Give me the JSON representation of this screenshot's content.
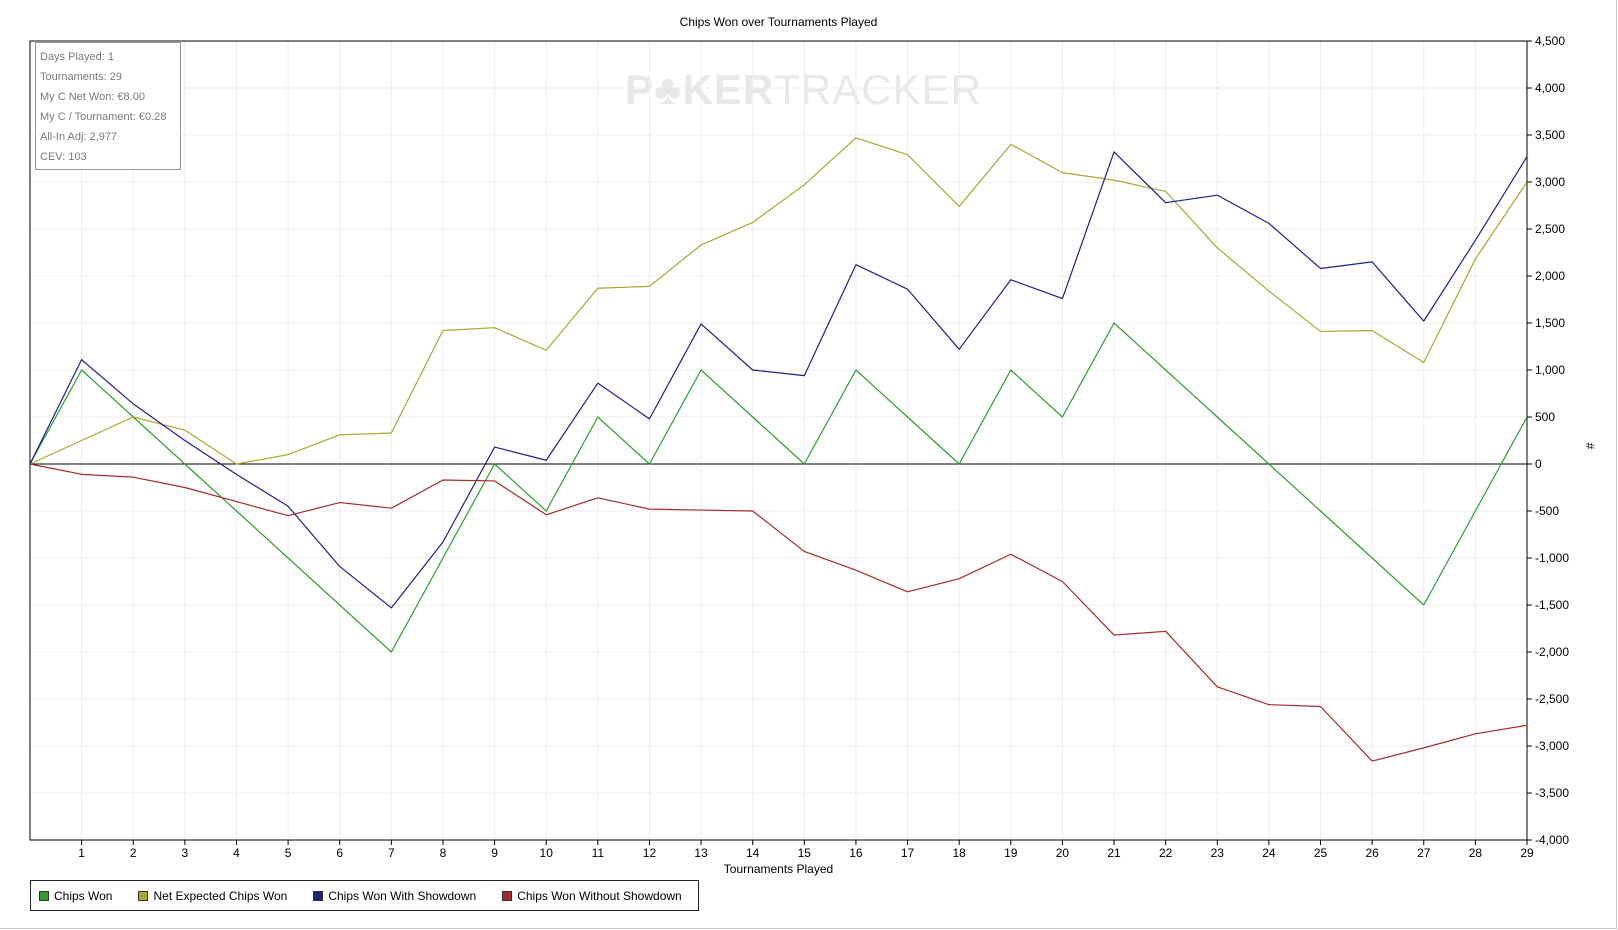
{
  "window": {
    "watermark_bold": "P♣KER",
    "watermark_light": "TRACKER"
  },
  "stats": [
    "Days Played: 1",
    "Tournaments: 29",
    "My C Net Won: €8.00",
    "My C / Tournament: €0.28",
    "All-In Adj: 2,977",
    "CEV: 103"
  ],
  "chart_data": {
    "type": "line",
    "title": "Chips Won over Tournaments Played",
    "xlabel": "Tournaments Played",
    "ylabel": "#",
    "xlim": [
      0,
      29
    ],
    "ylim": [
      -4000,
      4500
    ],
    "x_ticks": [
      1,
      2,
      3,
      4,
      5,
      6,
      7,
      8,
      9,
      10,
      11,
      12,
      13,
      14,
      15,
      16,
      17,
      18,
      19,
      20,
      21,
      22,
      23,
      24,
      25,
      26,
      27,
      28,
      29
    ],
    "y_ticks": [
      4500,
      4000,
      3500,
      3000,
      2500,
      2000,
      1500,
      1000,
      500,
      0,
      -500,
      -1000,
      -1500,
      -2000,
      -2500,
      -3000,
      -3500,
      -4000
    ],
    "y_tick_labels": [
      "4,500",
      "4,000",
      "3,500",
      "3,000",
      "2,500",
      "2,000",
      "1,500",
      "1,000",
      "500",
      "0",
      "-500",
      "-1,000",
      "-1,500",
      "-2,000",
      "-2,500",
      "-3,000",
      "-3,500",
      "-4,000"
    ],
    "grid": true,
    "legend_position": "bottom-left",
    "x": [
      0,
      1,
      2,
      3,
      4,
      5,
      6,
      7,
      8,
      9,
      10,
      11,
      12,
      13,
      14,
      15,
      16,
      17,
      18,
      19,
      20,
      21,
      22,
      23,
      24,
      25,
      26,
      27,
      28,
      29
    ],
    "series": [
      {
        "name": "Chips Won",
        "color": "#2ca02c",
        "values": [
          0,
          1000,
          500,
          0,
          -500,
          -1000,
          -1500,
          -2000,
          -1000,
          0,
          -500,
          500,
          0,
          1000,
          500,
          0,
          1000,
          500,
          0,
          1000,
          500,
          1500,
          1000,
          500,
          0,
          -500,
          -1000,
          -1500,
          -500,
          500
        ]
      },
      {
        "name": "Net Expected Chips Won",
        "color": "#a9a830",
        "values": [
          0,
          250,
          500,
          360,
          0,
          100,
          310,
          330,
          1420,
          1450,
          1210,
          1870,
          1890,
          2330,
          2570,
          2970,
          3470,
          3290,
          2740,
          3400,
          3100,
          3020,
          2900,
          2300,
          1840,
          1410,
          1420,
          1080,
          2180,
          3000
        ]
      },
      {
        "name": "Chips Won With Showdown",
        "color": "#1f1f8c",
        "values": [
          0,
          1110,
          640,
          250,
          -110,
          -450,
          -1090,
          -1530,
          -830,
          180,
          40,
          860,
          480,
          1490,
          1000,
          940,
          2120,
          1860,
          1220,
          1960,
          1760,
          3320,
          2780,
          2860,
          2560,
          2080,
          2150,
          1520,
          2380,
          3270
        ]
      },
      {
        "name": "Chips Won Without Showdown",
        "color": "#a52a2a",
        "values": [
          0,
          -110,
          -140,
          -250,
          -400,
          -550,
          -410,
          -470,
          -170,
          -180,
          -540,
          -360,
          -480,
          -490,
          -500,
          -930,
          -1130,
          -1360,
          -1220,
          -960,
          -1250,
          -1820,
          -1780,
          -2370,
          -2560,
          -2580,
          -3160,
          -3020,
          -2870,
          -2780
        ]
      }
    ]
  }
}
